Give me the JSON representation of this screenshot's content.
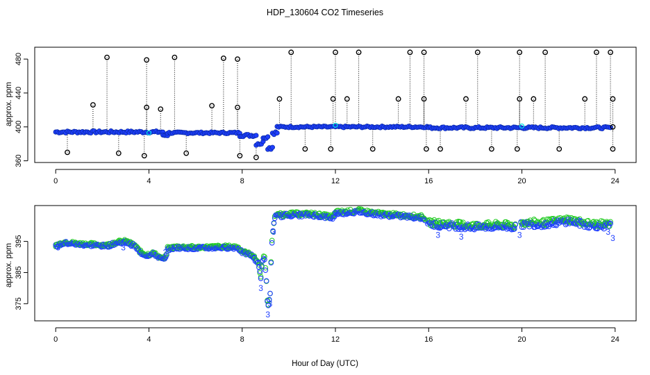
{
  "title": "HDP_130604  CO2 Timeseries",
  "xlabel": "Hour of Day (UTC)",
  "colors": {
    "raw": "#000000",
    "mean": "#1f3fff",
    "cyan": "#00e5e5",
    "green": "#22cc22",
    "fill": "#1f3fff"
  },
  "chart_data": [
    {
      "type": "scatter",
      "panel": "top",
      "ylabel": "approx. ppm",
      "xlim": [
        -0.9,
        24.9
      ],
      "ylim": [
        358,
        494
      ],
      "x_ticks": [
        0,
        4,
        8,
        12,
        16,
        20,
        24
      ],
      "y_ticks": [
        360,
        400,
        440,
        480
      ],
      "segments": [
        {
          "x0": 0,
          "x1": 4.6,
          "y": 394,
          "wobble": 1.3
        },
        {
          "x0": 4.6,
          "x1": 4.8,
          "y": 390,
          "wobble": 0.6
        },
        {
          "x0": 4.8,
          "x1": 7.9,
          "y": 393,
          "wobble": 1.0
        },
        {
          "x0": 7.9,
          "x1": 8.6,
          "y": 390,
          "wobble": 1.5
        },
        {
          "x0": 8.6,
          "x1": 8.9,
          "y": 381,
          "wobble": 3.0
        },
        {
          "x0": 8.9,
          "x1": 9.1,
          "y": 388,
          "wobble": 1.5
        },
        {
          "x0": 9.1,
          "x1": 9.3,
          "y": 376,
          "wobble": 3.0
        },
        {
          "x0": 9.3,
          "x1": 9.5,
          "y": 393,
          "wobble": 2.0
        },
        {
          "x0": 9.5,
          "x1": 16.0,
          "y": 400,
          "wobble": 1.0
        },
        {
          "x0": 16.0,
          "x1": 23.8,
          "y": 399,
          "wobble": 1.2
        }
      ],
      "spikes": [
        [
          0.5,
          370
        ],
        [
          1.6,
          426
        ],
        [
          2.2,
          482
        ],
        [
          2.7,
          369
        ],
        [
          3.8,
          366
        ],
        [
          3.9,
          423
        ],
        [
          3.9,
          479
        ],
        [
          4.5,
          421
        ],
        [
          5.1,
          482
        ],
        [
          5.6,
          369
        ],
        [
          6.7,
          425
        ],
        [
          7.2,
          481
        ],
        [
          7.8,
          480
        ],
        [
          7.8,
          423
        ],
        [
          7.9,
          366
        ],
        [
          8.6,
          364
        ],
        [
          9.6,
          433
        ],
        [
          10.1,
          488
        ],
        [
          10.7,
          374
        ],
        [
          11.8,
          374
        ],
        [
          11.9,
          433
        ],
        [
          12.0,
          488
        ],
        [
          12.5,
          433
        ],
        [
          13.0,
          488
        ],
        [
          13.6,
          374
        ],
        [
          14.7,
          433
        ],
        [
          15.2,
          488
        ],
        [
          15.8,
          488
        ],
        [
          15.8,
          433
        ],
        [
          15.9,
          374
        ],
        [
          16.5,
          374
        ],
        [
          17.6,
          433
        ],
        [
          18.1,
          488
        ],
        [
          18.7,
          374
        ],
        [
          19.8,
          374
        ],
        [
          19.9,
          433
        ],
        [
          19.9,
          488
        ],
        [
          20.5,
          433
        ],
        [
          21.0,
          488
        ],
        [
          21.6,
          374
        ],
        [
          22.7,
          433
        ],
        [
          23.2,
          488
        ],
        [
          23.8,
          488
        ],
        [
          23.9,
          433
        ],
        [
          23.9,
          400
        ],
        [
          23.9,
          374
        ]
      ],
      "markers_cyan": [
        [
          4.0,
          393
        ],
        [
          12.0,
          402
        ],
        [
          20.0,
          401
        ]
      ]
    },
    {
      "type": "scatter",
      "panel": "bottom",
      "ylabel": "approx. ppm",
      "xlim": [
        -0.9,
        24.9
      ],
      "ylim": [
        369.5,
        406.5
      ],
      "x_ticks": [
        0,
        4,
        8,
        12,
        16,
        20,
        24
      ],
      "y_ticks": [
        375,
        385,
        395
      ],
      "series_points": [
        [
          0,
          393.5
        ],
        [
          0.4,
          394.5
        ],
        [
          1.0,
          394.0
        ],
        [
          1.6,
          393.8
        ],
        [
          2.2,
          393.5
        ],
        [
          2.6,
          394.5
        ],
        [
          3.0,
          394.8
        ],
        [
          3.4,
          393.5
        ],
        [
          3.6,
          391.5
        ],
        [
          3.9,
          390.5
        ],
        [
          4.2,
          391.0
        ],
        [
          4.5,
          389.5
        ],
        [
          4.7,
          389.0
        ],
        [
          4.8,
          392.5
        ],
        [
          5.2,
          393.0
        ],
        [
          6.0,
          392.8
        ],
        [
          7.0,
          393.0
        ],
        [
          7.8,
          393.0
        ],
        [
          8.0,
          391.5
        ],
        [
          8.4,
          390.5
        ],
        [
          8.7,
          388.0
        ],
        [
          8.8,
          383.0
        ],
        [
          8.85,
          388.0
        ],
        [
          8.95,
          390.5
        ],
        [
          9.05,
          381.0
        ],
        [
          9.1,
          373.0
        ],
        [
          9.2,
          378.0
        ],
        [
          9.25,
          391.0
        ],
        [
          9.3,
          397.0
        ],
        [
          9.4,
          403.0
        ],
        [
          10.0,
          403.5
        ],
        [
          11.0,
          403.5
        ],
        [
          11.9,
          402.5
        ],
        [
          12.0,
          404.0
        ],
        [
          13.0,
          404.5
        ],
        [
          14.0,
          403.5
        ],
        [
          15.0,
          403.0
        ],
        [
          15.8,
          402.5
        ],
        [
          16.0,
          400.5
        ],
        [
          17.0,
          400.0
        ],
        [
          18.0,
          399.5
        ],
        [
          19.0,
          399.8
        ],
        [
          19.8,
          399.5
        ],
        [
          20.0,
          400.5
        ],
        [
          21.0,
          400.5
        ],
        [
          22.0,
          401.5
        ],
        [
          23.0,
          400.0
        ],
        [
          23.8,
          400.0
        ]
      ],
      "gaps": [
        [
          15.85,
          15.95
        ],
        [
          19.75,
          19.95
        ]
      ],
      "outliers_3": [
        [
          0.1,
          393
        ],
        [
          2.9,
          393
        ],
        [
          4.7,
          391.5
        ],
        [
          8.8,
          380
        ],
        [
          9.1,
          371.5
        ],
        [
          9.2,
          375
        ],
        [
          9.35,
          398
        ],
        [
          12.0,
          404
        ],
        [
          16.4,
          397
        ],
        [
          17.4,
          396.5
        ],
        [
          19.9,
          397
        ],
        [
          23.7,
          398
        ],
        [
          23.9,
          396
        ]
      ],
      "labels": {
        "outlier_glyph": "3"
      }
    }
  ]
}
